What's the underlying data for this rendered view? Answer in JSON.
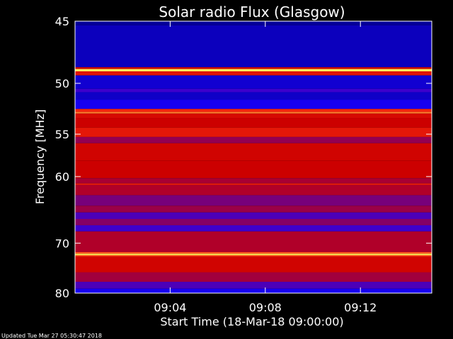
{
  "chart_data": {
    "type": "heatmap",
    "title": "Solar radio Flux (Glasgow)",
    "xlabel": "Start Time (18-Mar-18 09:00:00)",
    "ylabel": "Frequency [MHz]",
    "x_tick_labels": [
      "09:04",
      "09:08",
      "09:12"
    ],
    "x_ticks_minutes": [
      4,
      8,
      12
    ],
    "xlim_minutes": [
      0,
      15
    ],
    "y_tick_labels": [
      "45",
      "50",
      "55",
      "60",
      "70",
      "80"
    ],
    "y_ticks": [
      45,
      50,
      55,
      60,
      70,
      80
    ],
    "ylim": [
      45,
      80
    ],
    "y_scale": "reciprocal",
    "colormap": [
      "#000080",
      "#1a00ff",
      "#cc0000",
      "#ff3010",
      "#ffff60"
    ],
    "bands": [
      {
        "f_from": 45.0,
        "f_to": 45.3,
        "level": 0.05
      },
      {
        "f_from": 45.3,
        "f_to": 48.6,
        "level": 0.12
      },
      {
        "f_from": 48.6,
        "f_to": 48.75,
        "level": 0.55
      },
      {
        "f_from": 48.75,
        "f_to": 48.95,
        "level": 0.98
      },
      {
        "f_from": 48.95,
        "f_to": 49.3,
        "level": 0.6
      },
      {
        "f_from": 49.3,
        "f_to": 50.5,
        "level": 0.16
      },
      {
        "f_from": 50.5,
        "f_to": 50.8,
        "level": 0.3
      },
      {
        "f_from": 50.8,
        "f_to": 51.5,
        "level": 0.14
      },
      {
        "f_from": 51.5,
        "f_to": 52.4,
        "level": 0.22
      },
      {
        "f_from": 52.4,
        "f_to": 52.7,
        "level": 0.7
      },
      {
        "f_from": 52.7,
        "f_to": 52.85,
        "level": 0.85
      },
      {
        "f_from": 52.85,
        "f_to": 53.3,
        "level": 0.55
      },
      {
        "f_from": 53.3,
        "f_to": 54.3,
        "level": 0.5
      },
      {
        "f_from": 54.3,
        "f_to": 55.3,
        "level": 0.62
      },
      {
        "f_from": 55.3,
        "f_to": 56.0,
        "level": 0.42
      },
      {
        "f_from": 56.0,
        "f_to": 58.0,
        "level": 0.52
      },
      {
        "f_from": 58.0,
        "f_to": 60.2,
        "level": 0.5
      },
      {
        "f_from": 60.2,
        "f_to": 60.9,
        "level": 0.45
      },
      {
        "f_from": 60.9,
        "f_to": 61.1,
        "level": 0.65
      },
      {
        "f_from": 61.1,
        "f_to": 62.5,
        "level": 0.46
      },
      {
        "f_from": 62.5,
        "f_to": 64.0,
        "level": 0.38
      },
      {
        "f_from": 64.0,
        "f_to": 65.0,
        "level": 0.43
      },
      {
        "f_from": 65.0,
        "f_to": 66.0,
        "level": 0.32
      },
      {
        "f_from": 66.0,
        "f_to": 67.0,
        "level": 0.4
      },
      {
        "f_from": 67.0,
        "f_to": 68.0,
        "level": 0.3
      },
      {
        "f_from": 68.0,
        "f_to": 71.6,
        "level": 0.46
      },
      {
        "f_from": 71.6,
        "f_to": 71.9,
        "level": 0.8
      },
      {
        "f_from": 71.9,
        "f_to": 72.2,
        "level": 0.97
      },
      {
        "f_from": 72.2,
        "f_to": 72.5,
        "level": 0.7
      },
      {
        "f_from": 72.5,
        "f_to": 75.5,
        "level": 0.52
      },
      {
        "f_from": 75.5,
        "f_to": 77.5,
        "level": 0.44
      },
      {
        "f_from": 77.5,
        "f_to": 79.0,
        "level": 0.32
      },
      {
        "f_from": 79.0,
        "f_to": 80.0,
        "level": 0.22
      }
    ]
  },
  "footer": {
    "updated": "Updated Tue Mar 27 05:30:47 2018"
  }
}
